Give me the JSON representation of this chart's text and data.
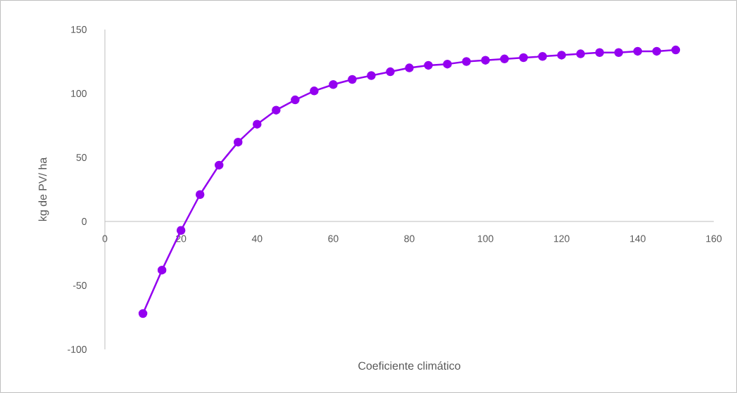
{
  "chart_data": {
    "type": "line",
    "xlabel": "Coeficiente climático",
    "ylabel": "kg de PV/ ha",
    "x": [
      10,
      15,
      20,
      25,
      30,
      35,
      40,
      45,
      50,
      55,
      60,
      65,
      70,
      75,
      80,
      85,
      90,
      95,
      100,
      105,
      110,
      115,
      120,
      125,
      130,
      135,
      140,
      145,
      150
    ],
    "series": [
      {
        "color": "#9400f0",
        "values": [
          -72,
          -38,
          -7,
          21,
          44,
          62,
          76,
          87,
          95,
          102,
          107,
          111,
          114,
          117,
          120,
          122,
          123,
          125,
          126,
          127,
          128,
          129,
          130,
          131,
          132,
          132,
          133,
          133,
          134
        ]
      }
    ],
    "xlim": [
      0,
      160
    ],
    "xticks": [
      0,
      20,
      40,
      60,
      80,
      100,
      120,
      140,
      160
    ],
    "ylim": [
      -100,
      150
    ],
    "yticks": [
      -100,
      -50,
      0,
      50,
      100,
      150
    ],
    "grid": false,
    "marker": "circle",
    "line_style": "solid"
  }
}
